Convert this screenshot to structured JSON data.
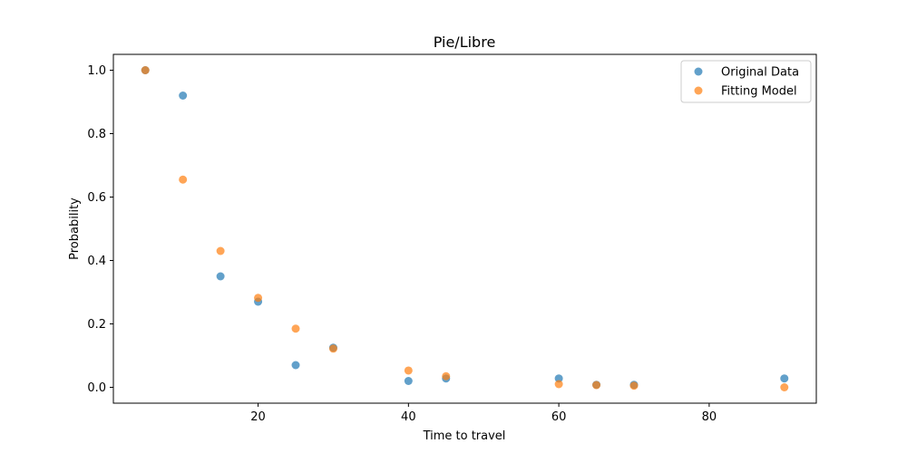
{
  "chart_data": {
    "type": "scatter",
    "title": "Pie/Libre",
    "xlabel": "Time to travel",
    "ylabel": "Probability",
    "xlim": [
      0.75,
      94.25
    ],
    "ylim": [
      -0.05,
      1.05
    ],
    "xticks": [
      20,
      40,
      60,
      80
    ],
    "yticks": [
      0.0,
      0.2,
      0.4,
      0.6,
      0.8,
      1.0
    ],
    "grid": false,
    "legend_position": "top-right",
    "series": [
      {
        "name": "Original Data",
        "color": "#1f77b4",
        "x": [
          5,
          10,
          15,
          20,
          25,
          30,
          40,
          45,
          60,
          65,
          70,
          90
        ],
        "y": [
          1.0,
          0.92,
          0.35,
          0.27,
          0.07,
          0.125,
          0.02,
          0.028,
          0.028,
          0.008,
          0.008,
          0.028
        ]
      },
      {
        "name": "Fitting Model",
        "color": "#ff7f0e",
        "x": [
          5,
          10,
          15,
          20,
          25,
          30,
          40,
          45,
          60,
          65,
          70,
          90
        ],
        "y": [
          1.0,
          0.655,
          0.43,
          0.282,
          0.185,
          0.122,
          0.053,
          0.035,
          0.01,
          0.007,
          0.005,
          0.0
        ]
      }
    ]
  }
}
